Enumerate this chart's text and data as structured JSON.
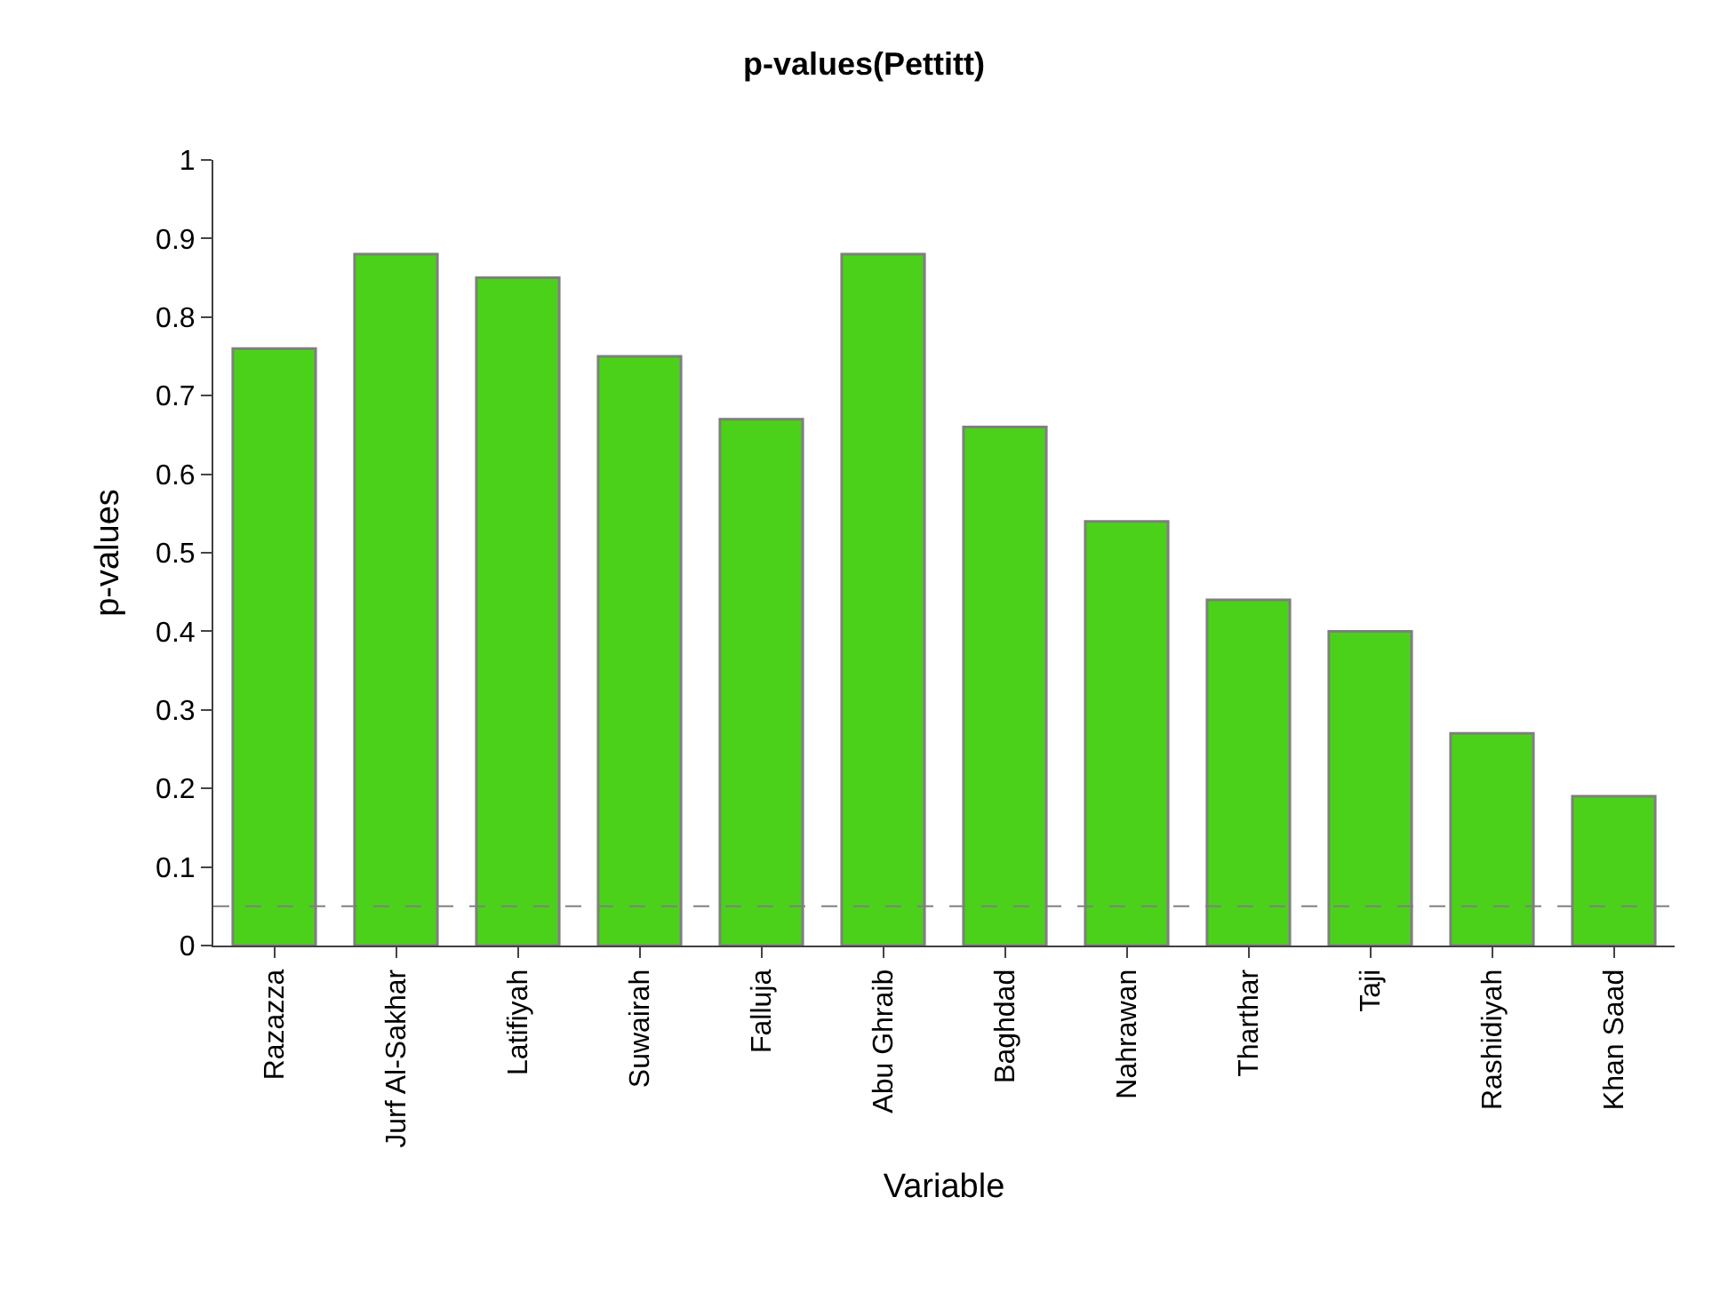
{
  "chart_data": {
    "type": "bar",
    "title": "p-values(Pettitt)",
    "xlabel": "Variable",
    "ylabel": "p-values",
    "categories": [
      "Razazza",
      "Jurf Al-Sakhar",
      "Latifiyah",
      "Suwairah",
      "Falluja",
      "Abu Ghraib",
      "Baghdad",
      "Nahrawan",
      "Tharthar",
      "Taji",
      "Rashidiyah",
      "Khan Saad"
    ],
    "values": [
      0.76,
      0.88,
      0.85,
      0.75,
      0.67,
      0.88,
      0.66,
      0.54,
      0.44,
      0.4,
      0.27,
      0.19
    ],
    "color": "#4cd11a",
    "ylim": [
      0,
      1
    ],
    "yticks": [
      0,
      0.1,
      0.2,
      0.3,
      0.4,
      0.5,
      0.6,
      0.7,
      0.8,
      0.9,
      1
    ],
    "ref_lines": [
      {
        "axis": "y",
        "value": 0.05,
        "label": null,
        "color": "#808080",
        "line_style": "dashed"
      }
    ]
  }
}
